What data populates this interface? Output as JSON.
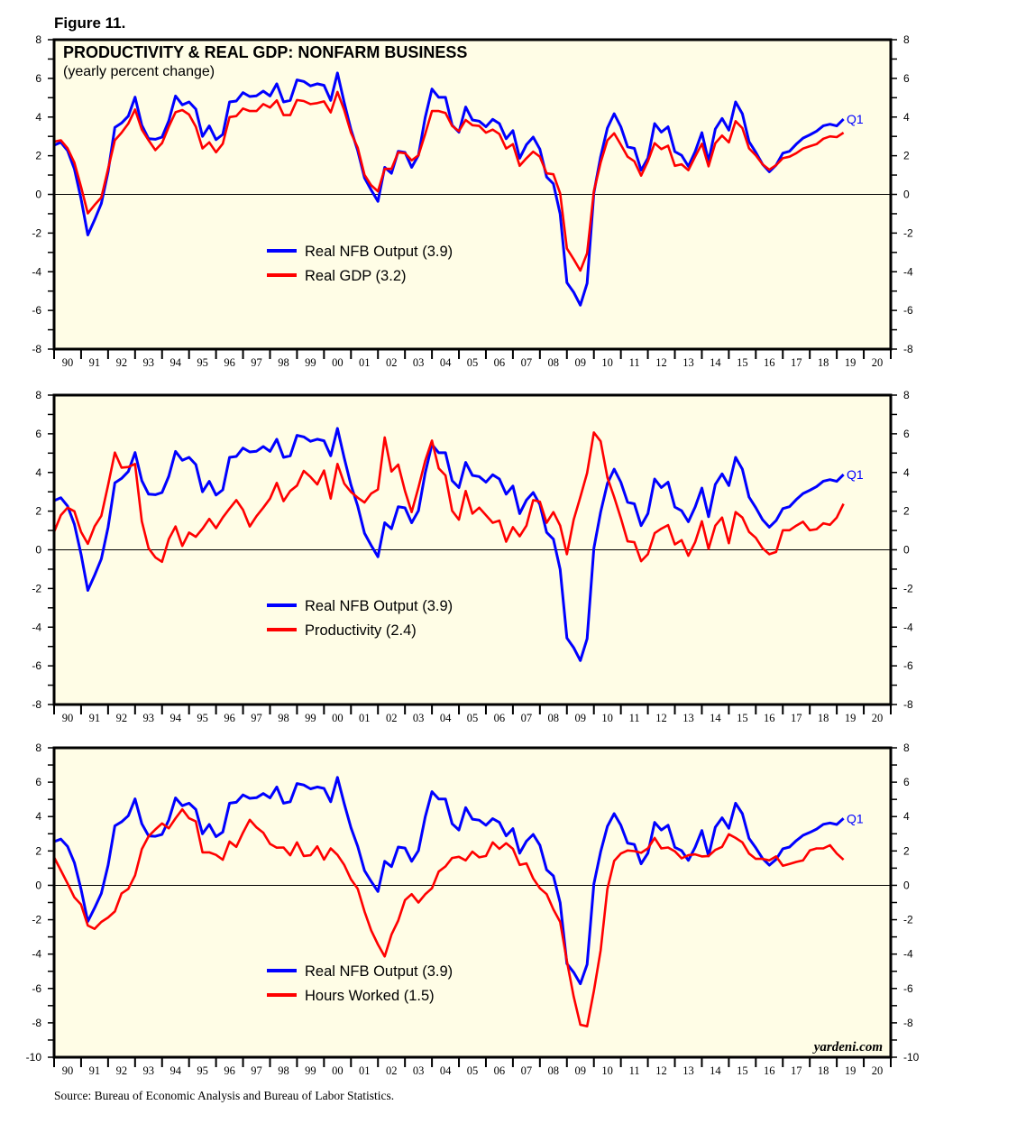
{
  "figure_label": "Figure 11.",
  "source": "Source: Bureau of Economic Analysis and Bureau of Labor Statistics.",
  "watermark": "yardeni.com",
  "colors": {
    "background": "#fffde6",
    "blue": "#0000ff",
    "red": "#ff0000",
    "axis": "#000000"
  },
  "chart_data": [
    {
      "type": "line",
      "title": "PRODUCTIVITY & REAL GDP: NONFARM BUSINESS",
      "subtitle": "(yearly percent change)",
      "frequency": "quarterly",
      "x_start": "1989Q4",
      "x_end": "2019Q1",
      "xlim": [
        1990,
        2021
      ],
      "xtick_labels": [
        "90",
        "91",
        "92",
        "93",
        "94",
        "95",
        "96",
        "97",
        "98",
        "99",
        "00",
        "01",
        "02",
        "03",
        "04",
        "05",
        "06",
        "07",
        "08",
        "09",
        "10",
        "11",
        "12",
        "13",
        "14",
        "15",
        "16",
        "17",
        "18",
        "19",
        "20"
      ],
      "ylim": [
        -8,
        8
      ],
      "ytick_labels": [
        "8",
        "6",
        "4",
        "2",
        "0",
        "-2",
        "-4",
        "-6",
        "-8"
      ],
      "end_label": "Q1",
      "series": [
        {
          "name": "Real NFB Output",
          "legend": "Real NFB Output (3.9)",
          "color": "#0000ff",
          "values": [
            2.54,
            2.69,
            2.26,
            1.32,
            -0.23,
            -2.1,
            -1.32,
            -0.47,
            1.17,
            3.46,
            3.69,
            4.05,
            5.03,
            3.58,
            2.88,
            2.85,
            2.96,
            3.8,
            5.09,
            4.63,
            4.78,
            4.41,
            3.0,
            3.54,
            2.83,
            3.1,
            4.78,
            4.83,
            5.26,
            5.06,
            5.1,
            5.34,
            5.09,
            5.72,
            4.78,
            4.86,
            5.92,
            5.84,
            5.61,
            5.72,
            5.64,
            4.86,
            6.28,
            4.75,
            3.35,
            2.26,
            0.86,
            0.23,
            -0.36,
            1.4,
            1.09,
            2.23,
            2.17,
            1.4,
            2.02,
            3.97,
            5.45,
            5.02,
            5.02,
            3.58,
            3.22,
            4.52,
            3.85,
            3.79,
            3.5,
            3.88,
            3.66,
            2.88,
            3.3,
            1.87,
            2.57,
            2.96,
            2.34,
            0.9,
            0.55,
            -1.01,
            -4.56,
            -5.06,
            -5.73,
            -4.6,
            0.08,
            1.95,
            3.43,
            4.17,
            3.5,
            2.46,
            2.38,
            1.25,
            1.87,
            3.66,
            3.22,
            3.5,
            2.21,
            2.02,
            1.45,
            2.21,
            3.19,
            1.71,
            3.38,
            3.93,
            3.32,
            4.78,
            4.17,
            2.73,
            2.18,
            1.56,
            1.17,
            1.51,
            2.13,
            2.23,
            2.6,
            2.91,
            3.08,
            3.27,
            3.55,
            3.63,
            3.54,
            3.89
          ]
        },
        {
          "name": "Real GDP",
          "legend": "Real GDP (3.2)",
          "color": "#ff0000",
          "values": [
            2.73,
            2.8,
            2.38,
            1.64,
            0.39,
            -0.98,
            -0.55,
            -0.16,
            1.32,
            2.8,
            3.19,
            3.66,
            4.39,
            3.35,
            2.8,
            2.29,
            2.65,
            3.5,
            4.25,
            4.36,
            4.13,
            3.5,
            2.38,
            2.69,
            2.18,
            2.62,
            4.0,
            4.05,
            4.44,
            4.31,
            4.31,
            4.67,
            4.49,
            4.86,
            4.1,
            4.1,
            4.88,
            4.83,
            4.67,
            4.72,
            4.81,
            4.24,
            5.3,
            4.36,
            3.19,
            2.41,
            1.01,
            0.47,
            0.16,
            1.32,
            1.32,
            2.18,
            2.13,
            1.76,
            2.02,
            3.12,
            4.31,
            4.31,
            4.21,
            3.54,
            3.27,
            3.85,
            3.58,
            3.54,
            3.19,
            3.35,
            3.12,
            2.37,
            2.6,
            1.48,
            1.87,
            2.21,
            1.95,
            1.09,
            1.04,
            0.05,
            -2.8,
            -3.35,
            -3.94,
            -3.04,
            0.16,
            1.64,
            2.8,
            3.16,
            2.57,
            1.95,
            1.71,
            0.97,
            1.71,
            2.65,
            2.34,
            2.52,
            1.48,
            1.56,
            1.25,
            1.95,
            2.62,
            1.45,
            2.65,
            3.04,
            2.69,
            3.79,
            3.43,
            2.38,
            2.02,
            1.56,
            1.28,
            1.51,
            1.87,
            1.95,
            2.13,
            2.37,
            2.49,
            2.6,
            2.88,
            3.0,
            2.96,
            3.19
          ]
        }
      ]
    },
    {
      "type": "line",
      "frequency": "quarterly",
      "x_start": "1989Q4",
      "x_end": "2019Q1",
      "xlim": [
        1990,
        2021
      ],
      "xtick_labels": [
        "90",
        "91",
        "92",
        "93",
        "94",
        "95",
        "96",
        "97",
        "98",
        "99",
        "00",
        "01",
        "02",
        "03",
        "04",
        "05",
        "06",
        "07",
        "08",
        "09",
        "10",
        "11",
        "12",
        "13",
        "14",
        "15",
        "16",
        "17",
        "18",
        "19",
        "20"
      ],
      "ylim": [
        -8,
        8
      ],
      "ytick_labels": [
        "8",
        "6",
        "4",
        "2",
        "0",
        "-2",
        "-4",
        "-6",
        "-8"
      ],
      "end_label": "Q1",
      "series": [
        {
          "name": "Real NFB Output",
          "legend": "Real NFB Output (3.9)",
          "color": "#0000ff",
          "values": [
            2.54,
            2.69,
            2.26,
            1.32,
            -0.23,
            -2.1,
            -1.32,
            -0.47,
            1.17,
            3.46,
            3.69,
            4.05,
            5.03,
            3.58,
            2.88,
            2.85,
            2.96,
            3.8,
            5.09,
            4.63,
            4.78,
            4.41,
            3.0,
            3.54,
            2.83,
            3.1,
            4.78,
            4.83,
            5.26,
            5.06,
            5.1,
            5.34,
            5.09,
            5.72,
            4.78,
            4.86,
            5.92,
            5.84,
            5.61,
            5.72,
            5.64,
            4.86,
            6.28,
            4.75,
            3.35,
            2.26,
            0.86,
            0.23,
            -0.36,
            1.4,
            1.09,
            2.23,
            2.17,
            1.4,
            2.02,
            3.97,
            5.45,
            5.02,
            5.02,
            3.58,
            3.22,
            4.52,
            3.85,
            3.79,
            3.5,
            3.88,
            3.66,
            2.88,
            3.3,
            1.87,
            2.57,
            2.96,
            2.34,
            0.9,
            0.55,
            -1.01,
            -4.56,
            -5.06,
            -5.73,
            -4.6,
            0.08,
            1.95,
            3.43,
            4.17,
            3.5,
            2.46,
            2.38,
            1.25,
            1.87,
            3.66,
            3.22,
            3.5,
            2.21,
            2.02,
            1.45,
            2.21,
            3.19,
            1.71,
            3.38,
            3.93,
            3.32,
            4.78,
            4.17,
            2.73,
            2.18,
            1.56,
            1.17,
            1.51,
            2.13,
            2.23,
            2.6,
            2.91,
            3.08,
            3.27,
            3.55,
            3.63,
            3.54,
            3.89
          ]
        },
        {
          "name": "Productivity",
          "legend": "Productivity (2.4)",
          "color": "#ff0000",
          "values": [
            0.93,
            1.79,
            2.18,
            1.99,
            0.93,
            0.31,
            1.21,
            1.76,
            3.35,
            5.03,
            4.25,
            4.28,
            4.44,
            1.48,
            0.08,
            -0.39,
            -0.62,
            0.55,
            1.21,
            0.2,
            0.89,
            0.67,
            1.09,
            1.6,
            1.12,
            1.67,
            2.13,
            2.57,
            2.07,
            1.21,
            1.74,
            2.18,
            2.65,
            3.46,
            2.52,
            3.04,
            3.32,
            4.08,
            3.77,
            3.38,
            4.1,
            2.65,
            4.44,
            3.43,
            2.99,
            2.69,
            2.45,
            2.91,
            3.12,
            5.81,
            4.05,
            4.41,
            3.04,
            1.95,
            3.22,
            4.6,
            5.65,
            4.21,
            3.85,
            2.02,
            1.56,
            3.04,
            1.87,
            2.18,
            1.79,
            1.4,
            1.51,
            0.42,
            1.17,
            0.7,
            1.25,
            2.57,
            2.49,
            1.4,
            1.95,
            1.25,
            -0.23,
            1.56,
            2.73,
            3.97,
            6.07,
            5.61,
            3.74,
            2.73,
            1.64,
            0.44,
            0.39,
            -0.59,
            -0.23,
            0.86,
            1.09,
            1.28,
            0.28,
            0.5,
            -0.31,
            0.39,
            1.48,
            0.05,
            1.25,
            1.67,
            0.34,
            1.95,
            1.67,
            0.93,
            0.62,
            0.08,
            -0.23,
            -0.11,
            1.01,
            1.01,
            1.25,
            1.45,
            1.01,
            1.07,
            1.37,
            1.29,
            1.67,
            2.38
          ]
        }
      ]
    },
    {
      "type": "line",
      "frequency": "quarterly",
      "x_start": "1989Q4",
      "x_end": "2019Q1",
      "xlim": [
        1990,
        2021
      ],
      "xtick_labels": [
        "90",
        "91",
        "92",
        "93",
        "94",
        "95",
        "96",
        "97",
        "98",
        "99",
        "00",
        "01",
        "02",
        "03",
        "04",
        "05",
        "06",
        "07",
        "08",
        "09",
        "10",
        "11",
        "12",
        "13",
        "14",
        "15",
        "16",
        "17",
        "18",
        "19",
        "20"
      ],
      "ylim": [
        -10,
        8
      ],
      "ytick_labels": [
        "8",
        "6",
        "4",
        "2",
        "0",
        "-2",
        "-4",
        "-6",
        "-8",
        "-10"
      ],
      "end_label": "Q1",
      "series": [
        {
          "name": "Real NFB Output",
          "legend": "Real NFB Output (3.9)",
          "color": "#0000ff",
          "values": [
            2.54,
            2.69,
            2.26,
            1.32,
            -0.23,
            -2.1,
            -1.32,
            -0.47,
            1.17,
            3.46,
            3.69,
            4.05,
            5.03,
            3.58,
            2.88,
            2.85,
            2.96,
            3.8,
            5.09,
            4.63,
            4.78,
            4.41,
            3.0,
            3.54,
            2.83,
            3.1,
            4.78,
            4.83,
            5.26,
            5.06,
            5.1,
            5.34,
            5.09,
            5.72,
            4.78,
            4.86,
            5.92,
            5.84,
            5.61,
            5.72,
            5.64,
            4.86,
            6.28,
            4.75,
            3.35,
            2.26,
            0.86,
            0.23,
            -0.36,
            1.4,
            1.09,
            2.23,
            2.17,
            1.4,
            2.02,
            3.97,
            5.45,
            5.02,
            5.02,
            3.58,
            3.22,
            4.52,
            3.85,
            3.79,
            3.5,
            3.88,
            3.66,
            2.88,
            3.3,
            1.87,
            2.57,
            2.96,
            2.34,
            0.9,
            0.55,
            -1.01,
            -4.56,
            -5.06,
            -5.73,
            -4.6,
            0.08,
            1.95,
            3.43,
            4.17,
            3.5,
            2.46,
            2.38,
            1.25,
            1.87,
            3.66,
            3.22,
            3.5,
            2.21,
            2.02,
            1.45,
            2.21,
            3.19,
            1.71,
            3.38,
            3.93,
            3.32,
            4.78,
            4.17,
            2.73,
            2.18,
            1.56,
            1.17,
            1.51,
            2.13,
            2.23,
            2.6,
            2.91,
            3.08,
            3.27,
            3.55,
            3.63,
            3.54,
            3.89
          ]
        },
        {
          "name": "Hours Worked",
          "legend": "Hours Worked (1.5)",
          "color": "#ff0000",
          "values": [
            1.63,
            0.87,
            0.1,
            -0.7,
            -1.12,
            -2.34,
            -2.53,
            -2.13,
            -1.87,
            -1.52,
            -0.47,
            -0.21,
            0.58,
            2.1,
            2.85,
            3.25,
            3.6,
            3.32,
            3.9,
            4.42,
            3.9,
            3.72,
            1.92,
            1.92,
            1.77,
            1.49,
            2.55,
            2.24,
            3.06,
            3.81,
            3.37,
            3.06,
            2.41,
            2.19,
            2.2,
            1.75,
            2.5,
            1.71,
            1.75,
            2.27,
            1.5,
            2.15,
            1.77,
            1.19,
            0.35,
            -0.21,
            -1.52,
            -2.62,
            -3.44,
            -4.14,
            -2.87,
            -2.05,
            -0.86,
            -0.51,
            -1.0,
            -0.52,
            -0.17,
            0.8,
            1.1,
            1.59,
            1.66,
            1.45,
            1.96,
            1.63,
            1.71,
            2.5,
            2.12,
            2.45,
            2.12,
            1.19,
            1.28,
            0.4,
            -0.17,
            -0.51,
            -1.4,
            -2.13,
            -4.41,
            -6.47,
            -8.11,
            -8.2,
            -6.15,
            -3.79,
            -0.21,
            1.42,
            1.85,
            2.03,
            1.99,
            1.89,
            2.15,
            2.76,
            2.15,
            2.2,
            1.98,
            1.57,
            1.75,
            1.8,
            1.68,
            1.71,
            2.06,
            2.24,
            2.97,
            2.76,
            2.5,
            1.85,
            1.54,
            1.54,
            1.45,
            1.68,
            1.14,
            1.24,
            1.36,
            1.45,
            2.03,
            2.15,
            2.15,
            2.33,
            1.85,
            1.49
          ]
        }
      ]
    }
  ]
}
